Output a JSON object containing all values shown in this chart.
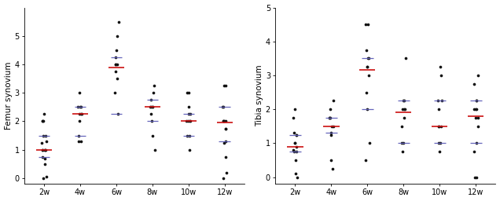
{
  "femur": {
    "ylabel": "Femur synovium",
    "ylim": [
      -0.2,
      6
    ],
    "yticks": [
      0,
      1,
      2,
      3,
      4,
      5
    ],
    "groups": [
      "2w",
      "4w",
      "6w",
      "8w",
      "10w",
      "12w"
    ],
    "points": [
      [
        0.0,
        0.05,
        0.5,
        0.7,
        0.75,
        1.0,
        1.0,
        1.0,
        1.0,
        1.0,
        1.25,
        1.3,
        1.5,
        1.5,
        2.0,
        2.0,
        2.0,
        2.25
      ],
      [
        1.3,
        1.3,
        1.5,
        2.0,
        2.25,
        2.25,
        2.25,
        2.5,
        2.5,
        2.5,
        3.0
      ],
      [
        2.25,
        3.0,
        3.5,
        3.75,
        4.0,
        4.0,
        4.0,
        4.25,
        4.5,
        5.0,
        5.5
      ],
      [
        1.0,
        1.5,
        2.0,
        2.25,
        2.5,
        2.5,
        2.5,
        2.5,
        2.75,
        3.0,
        3.25
      ],
      [
        1.0,
        1.5,
        1.5,
        2.0,
        2.0,
        2.0,
        2.0,
        2.25,
        2.25,
        2.5,
        3.0,
        3.0
      ],
      [
        0.0,
        0.2,
        0.75,
        1.25,
        1.3,
        1.75,
        1.75,
        2.0,
        2.0,
        2.0,
        2.0,
        2.5,
        2.5,
        3.25,
        3.25
      ]
    ],
    "medians": [
      1.0,
      2.25,
      3.9,
      2.5,
      2.0,
      1.95
    ],
    "q1": [
      0.75,
      1.5,
      2.25,
      2.0,
      1.5,
      1.3
    ],
    "q3": [
      1.5,
      2.5,
      4.25,
      2.75,
      2.25,
      2.5
    ]
  },
  "tibia": {
    "ylabel": "Tibia synovium",
    "ylim": [
      -0.2,
      5
    ],
    "yticks": [
      0,
      1,
      2,
      3,
      4,
      5
    ],
    "groups": [
      "2w",
      "4w",
      "6w",
      "8w",
      "10w",
      "12w"
    ],
    "points": [
      [
        0.0,
        0.1,
        0.5,
        0.75,
        0.75,
        0.8,
        0.9,
        1.0,
        1.0,
        1.25,
        1.25,
        1.3,
        1.75,
        2.0
      ],
      [
        0.25,
        0.5,
        1.25,
        1.3,
        1.5,
        1.5,
        1.75,
        1.75,
        1.75,
        2.0,
        2.25
      ],
      [
        0.5,
        1.0,
        2.0,
        2.5,
        3.0,
        3.25,
        3.25,
        3.5,
        3.5,
        3.75,
        4.5,
        4.5
      ],
      [
        0.75,
        1.0,
        1.0,
        1.5,
        1.75,
        2.0,
        2.0,
        2.0,
        2.25,
        2.25,
        3.5
      ],
      [
        0.75,
        1.0,
        1.0,
        1.5,
        1.5,
        1.5,
        2.0,
        2.25,
        2.25,
        3.0,
        3.25
      ],
      [
        0.0,
        0.0,
        0.75,
        1.0,
        1.5,
        1.75,
        1.75,
        2.0,
        2.0,
        2.0,
        2.25,
        2.25,
        2.75,
        3.0
      ]
    ],
    "medians": [
      0.9,
      1.5,
      3.15,
      1.9,
      1.5,
      1.8
    ],
    "q1": [
      0.75,
      1.3,
      2.0,
      1.0,
      1.0,
      1.0
    ],
    "q3": [
      1.25,
      1.75,
      3.5,
      2.25,
      2.25,
      2.25
    ]
  },
  "dot_color": "#111111",
  "median_color": "#cc1111",
  "iqr_color": "#6666bb",
  "dot_size": 7,
  "jitter_seed": 42,
  "x_positions": [
    1,
    2,
    3,
    4,
    5,
    6
  ],
  "tick_fontsize": 7,
  "label_fontsize": 7.5
}
